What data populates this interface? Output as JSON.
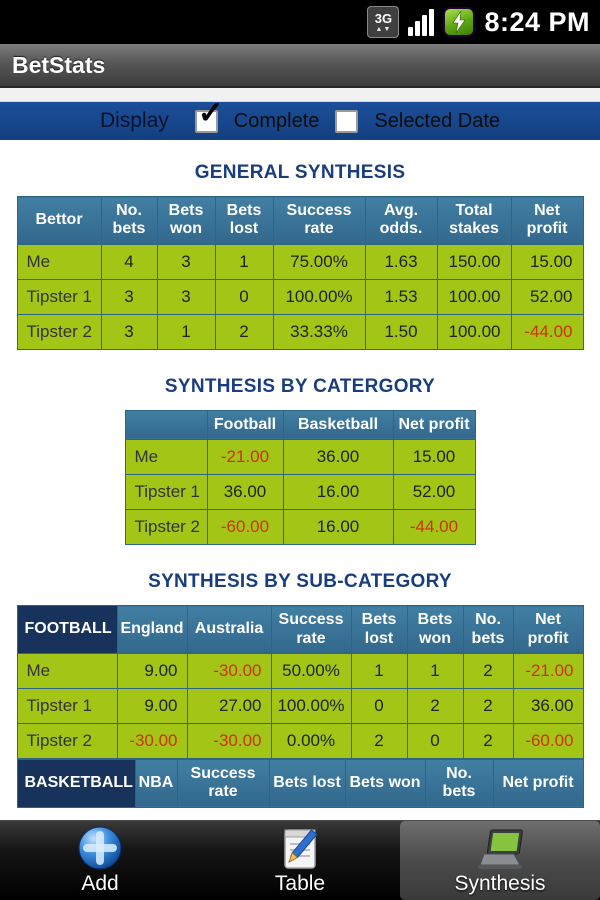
{
  "status_bar": {
    "time": "8:24 PM",
    "network_label": "3G",
    "network_arrows": "▲▼"
  },
  "title_bar": {
    "title": "BetStats"
  },
  "display_bar": {
    "label": "Display",
    "check_glyph": "✓",
    "complete": {
      "label": "Complete",
      "checked": true
    },
    "selected_date": {
      "label": "Selected Date",
      "checked": false
    }
  },
  "sections": {
    "general": {
      "title": "GENERAL SYNTHESIS",
      "table": {
        "headers": [
          "Bettor",
          "No. bets",
          "Bets won",
          "Bets lost",
          "Success rate",
          "Avg. odds.",
          "Total stakes",
          "Net profit"
        ],
        "rows": [
          [
            "Me",
            "4",
            "3",
            "1",
            "75.00%",
            "1.63",
            "150.00",
            "15.00"
          ],
          [
            "Tipster 1",
            "3",
            "3",
            "0",
            "100.00%",
            "1.53",
            "100.00",
            "52.00"
          ],
          [
            "Tipster 2",
            "3",
            "1",
            "2",
            "33.33%",
            "1.50",
            "100.00",
            "-44.00"
          ]
        ]
      }
    },
    "category": {
      "title": "SYNTHESIS BY CATERGORY",
      "table": {
        "headers": [
          "",
          "Football",
          "Basketball",
          "Net profit"
        ],
        "rows": [
          [
            "Me",
            "-21.00",
            "36.00",
            "15.00"
          ],
          [
            "Tipster 1",
            "36.00",
            "16.00",
            "52.00"
          ],
          [
            "Tipster 2",
            "-60.00",
            "16.00",
            "-44.00"
          ]
        ]
      }
    },
    "subcategory": {
      "title": "SYNTHESIS BY SUB-CATEGORY",
      "football_table": {
        "headers": [
          "FOOTBALL",
          "England",
          "Australia",
          "Success rate",
          "Bets lost",
          "Bets won",
          "No. bets",
          "Net profit"
        ],
        "rows": [
          [
            "Me",
            "9.00",
            "-30.00",
            "50.00%",
            "1",
            "1",
            "2",
            "-21.00"
          ],
          [
            "Tipster 1",
            "9.00",
            "27.00",
            "100.00%",
            "0",
            "2",
            "2",
            "36.00"
          ],
          [
            "Tipster 2",
            "-30.00",
            "-30.00",
            "0.00%",
            "2",
            "0",
            "2",
            "-60.00"
          ]
        ]
      },
      "basketball_table": {
        "headers": [
          "BASKETBALL",
          "NBA",
          "Success rate",
          "Bets lost",
          "Bets won",
          "No. bets",
          "Net profit"
        ],
        "rows": []
      }
    }
  },
  "bottom_nav": {
    "items": [
      {
        "label": "Add",
        "active": false
      },
      {
        "label": "Table",
        "active": false
      },
      {
        "label": "Synthesis",
        "active": true
      }
    ]
  },
  "colors": {
    "header_teal": "#38749a",
    "row_green": "#a3c516",
    "negative": "#cc3300",
    "accent_blue": "#17498f",
    "heading_navy": "#1a3e7d",
    "dark_header_navy": "#17335c"
  }
}
